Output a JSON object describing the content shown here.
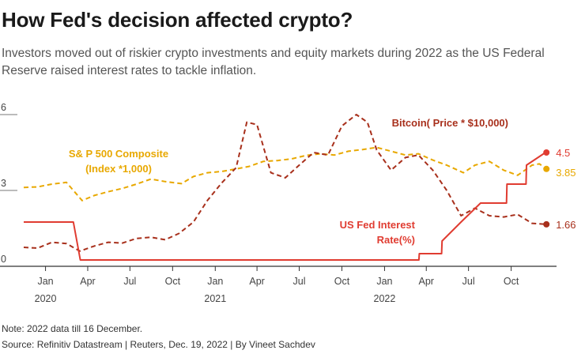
{
  "title": "How Fed's decision affected crypto?",
  "subtitle": "Investors moved out of riskier crypto investments and equity markets during 2022 as the US Federal Reserve raised interest rates to tackle inflation.",
  "note": "Note: 2022 data till 16 December.",
  "source": "Source: Refinitiv Datastream | Reuters, Dec. 19, 2022 | By Vineet Sachdev",
  "chart_data": {
    "type": "line",
    "ylim": [
      0,
      6
    ],
    "yticks": [
      0,
      3,
      6
    ],
    "grid": false,
    "xlim": [
      "2019-11-15",
      "2022-12-31"
    ],
    "xticks": [
      {
        "date": "2020-01-01",
        "label": "Jan",
        "year": "2020"
      },
      {
        "date": "2020-04-01",
        "label": "Apr",
        "year": ""
      },
      {
        "date": "2020-07-01",
        "label": "Jul",
        "year": ""
      },
      {
        "date": "2020-10-01",
        "label": "Oct",
        "year": ""
      },
      {
        "date": "2021-01-01",
        "label": "Jan",
        "year": "2021"
      },
      {
        "date": "2021-04-01",
        "label": "Apr",
        "year": ""
      },
      {
        "date": "2021-07-01",
        "label": "Jul",
        "year": ""
      },
      {
        "date": "2021-10-01",
        "label": "Oct",
        "year": ""
      },
      {
        "date": "2022-01-01",
        "label": "Jan",
        "year": "2022"
      },
      {
        "date": "2022-04-01",
        "label": "Apr",
        "year": ""
      },
      {
        "date": "2022-07-01",
        "label": "Jul",
        "year": ""
      },
      {
        "date": "2022-10-01",
        "label": "Oct",
        "year": ""
      }
    ],
    "series": [
      {
        "name": "S& P 500 Composite (Index *1,000)",
        "label_lines": [
          "S& P 500 Composite",
          "(Index *1,000)"
        ],
        "color": "#e8a800",
        "style": "dashed",
        "end_label": "3.85",
        "end_marker": true,
        "points": [
          [
            "2019-11-15",
            3.12
          ],
          [
            "2019-12-15",
            3.14
          ],
          [
            "2020-01-15",
            3.25
          ],
          [
            "2020-02-15",
            3.32
          ],
          [
            "2020-03-20",
            2.6
          ],
          [
            "2020-04-15",
            2.8
          ],
          [
            "2020-05-15",
            2.95
          ],
          [
            "2020-06-15",
            3.08
          ],
          [
            "2020-07-15",
            3.25
          ],
          [
            "2020-08-15",
            3.45
          ],
          [
            "2020-09-15",
            3.35
          ],
          [
            "2020-10-20",
            3.27
          ],
          [
            "2020-11-15",
            3.55
          ],
          [
            "2020-12-15",
            3.7
          ],
          [
            "2021-01-15",
            3.75
          ],
          [
            "2021-02-15",
            3.85
          ],
          [
            "2021-03-15",
            3.95
          ],
          [
            "2021-04-15",
            4.15
          ],
          [
            "2021-05-15",
            4.18
          ],
          [
            "2021-06-15",
            4.25
          ],
          [
            "2021-07-15",
            4.38
          ],
          [
            "2021-08-15",
            4.45
          ],
          [
            "2021-09-15",
            4.4
          ],
          [
            "2021-10-15",
            4.55
          ],
          [
            "2021-11-15",
            4.62
          ],
          [
            "2021-12-15",
            4.7
          ],
          [
            "2022-01-15",
            4.55
          ],
          [
            "2022-02-15",
            4.4
          ],
          [
            "2022-03-15",
            4.45
          ],
          [
            "2022-04-15",
            4.2
          ],
          [
            "2022-05-15",
            4.0
          ],
          [
            "2022-06-20",
            3.7
          ],
          [
            "2022-07-15",
            4.0
          ],
          [
            "2022-08-15",
            4.15
          ],
          [
            "2022-09-15",
            3.8
          ],
          [
            "2022-10-15",
            3.6
          ],
          [
            "2022-11-15",
            4.0
          ],
          [
            "2022-12-01",
            4.05
          ],
          [
            "2022-12-16",
            3.85
          ]
        ]
      },
      {
        "name": "Bitcoin( Price * $10,000)",
        "label_lines": [
          "Bitcoin( Price * $10,000)"
        ],
        "color": "#a8301c",
        "style": "dashed",
        "end_label": "1.66",
        "end_marker": true,
        "points": [
          [
            "2019-11-15",
            0.75
          ],
          [
            "2019-12-15",
            0.72
          ],
          [
            "2020-01-15",
            0.95
          ],
          [
            "2020-02-15",
            0.9
          ],
          [
            "2020-03-15",
            0.6
          ],
          [
            "2020-04-15",
            0.8
          ],
          [
            "2020-05-15",
            0.95
          ],
          [
            "2020-06-15",
            0.92
          ],
          [
            "2020-07-15",
            1.1
          ],
          [
            "2020-08-15",
            1.15
          ],
          [
            "2020-09-15",
            1.05
          ],
          [
            "2020-10-15",
            1.3
          ],
          [
            "2020-11-15",
            1.75
          ],
          [
            "2020-12-15",
            2.6
          ],
          [
            "2021-01-15",
            3.3
          ],
          [
            "2021-02-15",
            3.9
          ],
          [
            "2021-03-10",
            5.7
          ],
          [
            "2021-04-01",
            5.6
          ],
          [
            "2021-05-01",
            3.7
          ],
          [
            "2021-06-01",
            3.5
          ],
          [
            "2021-07-01",
            4.0
          ],
          [
            "2021-08-01",
            4.5
          ],
          [
            "2021-09-01",
            4.4
          ],
          [
            "2021-10-01",
            5.55
          ],
          [
            "2021-11-01",
            6.0
          ],
          [
            "2021-11-25",
            5.7
          ],
          [
            "2021-12-15",
            4.6
          ],
          [
            "2022-01-15",
            3.8
          ],
          [
            "2022-02-15",
            4.3
          ],
          [
            "2022-03-15",
            4.4
          ],
          [
            "2022-04-15",
            3.8
          ],
          [
            "2022-05-15",
            3.0
          ],
          [
            "2022-06-15",
            2.0
          ],
          [
            "2022-07-15",
            2.3
          ],
          [
            "2022-08-15",
            2.0
          ],
          [
            "2022-09-15",
            1.95
          ],
          [
            "2022-10-15",
            2.05
          ],
          [
            "2022-11-15",
            1.7
          ],
          [
            "2022-12-16",
            1.66
          ]
        ]
      },
      {
        "name": "US Fed Interest Rate(%)",
        "label_lines": [
          "US Fed Interest",
          "Rate(%)"
        ],
        "color": "#e03c31",
        "style": "solid",
        "end_label": "4.5",
        "end_marker": true,
        "points": [
          [
            "2019-11-15",
            1.75
          ],
          [
            "2020-03-01",
            1.75
          ],
          [
            "2020-03-16",
            0.25
          ],
          [
            "2022-03-16",
            0.25
          ],
          [
            "2022-03-17",
            0.5
          ],
          [
            "2022-05-04",
            0.5
          ],
          [
            "2022-05-05",
            1.0
          ],
          [
            "2022-06-15",
            1.75
          ],
          [
            "2022-07-27",
            2.5
          ],
          [
            "2022-09-21",
            2.5
          ],
          [
            "2022-09-22",
            3.25
          ],
          [
            "2022-11-02",
            3.25
          ],
          [
            "2022-11-03",
            4.0
          ],
          [
            "2022-12-14",
            4.5
          ],
          [
            "2022-12-16",
            4.5
          ]
        ]
      }
    ]
  }
}
